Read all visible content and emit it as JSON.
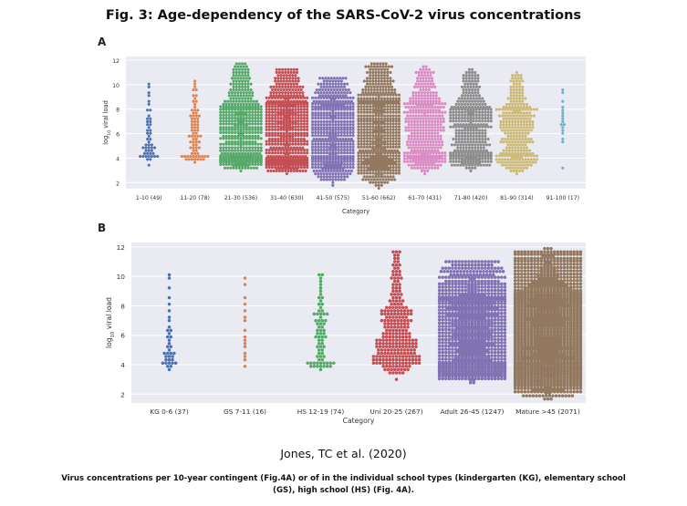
{
  "figure": {
    "title": "Fig. 3: Age-dependency of the SARS-CoV-2 virus concentrations",
    "credit": "Jones, TC et al. (2020)",
    "caption": "Virus concentrations per 10-year contingent (Fig.4A) or of in the individual school types (kindergarten (KG), elementary school (GS), high school (HS) (Fig. 4A)."
  },
  "chart_data": [
    {
      "panel": "A",
      "type": "scatter",
      "subtype": "swarm",
      "title": "",
      "xlabel": "Category",
      "ylabel": "log10 viral load",
      "ylabel_main": "log",
      "ylabel_sub": "10",
      "ylabel_rest": " viral load",
      "ylim": [
        1.5,
        12.3
      ],
      "yticks": [
        2,
        4,
        6,
        8,
        10,
        12
      ],
      "grid": true,
      "background": "#eaeaf2",
      "categories": [
        {
          "label": "1-10 (49)",
          "n": 49,
          "color": "#4c72b0",
          "min": 3.5,
          "max": 10.1,
          "q1": 4.3,
          "med": 5.0,
          "q3": 6.8
        },
        {
          "label": "11-20 (78)",
          "n": 78,
          "color": "#dd8452",
          "min": 3.6,
          "max": 10.2,
          "q1": 4.2,
          "med": 5.8,
          "q3": 7.4
        },
        {
          "label": "21-30 (536)",
          "n": 536,
          "color": "#55a868",
          "min": 3.0,
          "max": 11.7,
          "q1": 4.1,
          "med": 6.3,
          "q3": 8.1
        },
        {
          "label": "31-40 (630)",
          "n": 630,
          "color": "#c44e52",
          "min": 2.7,
          "max": 11.3,
          "q1": 4.0,
          "med": 6.4,
          "q3": 8.3
        },
        {
          "label": "41-50 (575)",
          "n": 575,
          "color": "#8172b3",
          "min": 1.8,
          "max": 10.6,
          "q1": 4.0,
          "med": 6.0,
          "q3": 8.2
        },
        {
          "label": "51-60 (662)",
          "n": 662,
          "color": "#937860",
          "min": 1.5,
          "max": 11.8,
          "q1": 4.0,
          "med": 6.2,
          "q3": 8.5
        },
        {
          "label": "61-70 (431)",
          "n": 431,
          "color": "#da8bc3",
          "min": 2.8,
          "max": 11.4,
          "q1": 4.3,
          "med": 6.4,
          "q3": 8.3
        },
        {
          "label": "71-80 (420)",
          "n": 420,
          "color": "#8c8c8c",
          "min": 3.0,
          "max": 11.2,
          "q1": 4.3,
          "med": 6.4,
          "q3": 8.0
        },
        {
          "label": "81-90 (314)",
          "n": 314,
          "color": "#ccb974",
          "min": 2.6,
          "max": 10.9,
          "q1": 4.3,
          "med": 6.3,
          "q3": 7.9
        },
        {
          "label": "91-100 (17)",
          "n": 17,
          "color": "#64b5cd",
          "min": 3.3,
          "max": 9.6,
          "q1": 5.6,
          "med": 6.8,
          "q3": 7.8
        }
      ]
    },
    {
      "panel": "B",
      "type": "scatter",
      "subtype": "swarm",
      "title": "",
      "xlabel": "Category",
      "ylabel": "log10 viral load",
      "ylabel_main": "log",
      "ylabel_sub": "10",
      "ylabel_rest": " viral load",
      "ylim": [
        1.4,
        12.3
      ],
      "yticks": [
        2,
        4,
        6,
        8,
        10,
        12
      ],
      "grid": true,
      "background": "#eaeaf2",
      "categories": [
        {
          "label": "KG 0-6 (37)",
          "n": 37,
          "color": "#4c72b0",
          "min": 3.6,
          "max": 10.1,
          "q1": 4.2,
          "med": 4.8,
          "q3": 6.4
        },
        {
          "label": "GS 7-11 (16)",
          "n": 16,
          "color": "#dd8452",
          "min": 3.8,
          "max": 9.8,
          "q1": 4.4,
          "med": 5.6,
          "q3": 7.6
        },
        {
          "label": "HS 12-19 (74)",
          "n": 74,
          "color": "#55a868",
          "min": 3.6,
          "max": 10.2,
          "q1": 4.2,
          "med": 5.9,
          "q3": 7.4
        },
        {
          "label": "Uni 20-25 (267)",
          "n": 267,
          "color": "#c44e52",
          "min": 3.1,
          "max": 11.7,
          "q1": 4.6,
          "med": 5.8,
          "q3": 7.6
        },
        {
          "label": "Adult 26-45 (1247)",
          "n": 1247,
          "color": "#8172b3",
          "min": 2.8,
          "max": 11.1,
          "q1": 4.0,
          "med": 6.2,
          "q3": 8.3
        },
        {
          "label": "Mature >45 (2071)",
          "n": 2071,
          "color": "#937860",
          "min": 1.6,
          "max": 11.8,
          "q1": 4.0,
          "med": 6.2,
          "q3": 8.4
        }
      ]
    }
  ]
}
